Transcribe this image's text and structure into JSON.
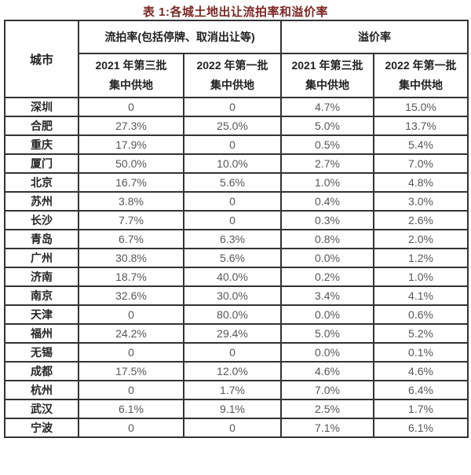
{
  "title": "表 1:各城土地出让流拍率和溢价率",
  "colors": {
    "title_text": "#7a2723",
    "border": "#333333",
    "header_text": "#1f1f1f",
    "value_text": "#575757",
    "background": "#ffffff"
  },
  "table": {
    "city_header": "城市",
    "group1": "流拍率(包括停牌、取消出让等)",
    "group2": "溢价率",
    "sub_headers": [
      {
        "line1": "2021 年第三批",
        "line2": "集中供地"
      },
      {
        "line1": "2022 年第一批",
        "line2": "集中供地"
      },
      {
        "line1": "2021 年第三批",
        "line2": "集中供地"
      },
      {
        "line1": "2022 年第一批",
        "line2": "集中供地"
      }
    ],
    "rows": [
      {
        "city": "深圳",
        "values": [
          "0",
          "0",
          "4.7%",
          "15.0%"
        ]
      },
      {
        "city": "合肥",
        "values": [
          "27.3%",
          "25.0%",
          "5.0%",
          "13.7%"
        ]
      },
      {
        "city": "重庆",
        "values": [
          "17.9%",
          "0",
          "0.5%",
          "5.4%"
        ]
      },
      {
        "city": "厦门",
        "values": [
          "50.0%",
          "10.0%",
          "2.7%",
          "7.0%"
        ]
      },
      {
        "city": "北京",
        "values": [
          "16.7%",
          "5.6%",
          "1.0%",
          "4.8%"
        ]
      },
      {
        "city": "苏州",
        "values": [
          "3.8%",
          "0",
          "0.4%",
          "3.0%"
        ]
      },
      {
        "city": "长沙",
        "values": [
          "7.7%",
          "0",
          "0.3%",
          "2.6%"
        ]
      },
      {
        "city": "青岛",
        "values": [
          "6.7%",
          "6.3%",
          "0.8%",
          "2.0%"
        ]
      },
      {
        "city": "广州",
        "values": [
          "30.8%",
          "5.6%",
          "0.0%",
          "1.2%"
        ]
      },
      {
        "city": "济南",
        "values": [
          "18.7%",
          "40.0%",
          "0.2%",
          "1.0%"
        ]
      },
      {
        "city": "南京",
        "values": [
          "32.6%",
          "30.0%",
          "3.4%",
          "4.1%"
        ]
      },
      {
        "city": "天津",
        "values": [
          "0",
          "80.0%",
          "0.0%",
          "0.6%"
        ]
      },
      {
        "city": "福州",
        "values": [
          "24.2%",
          "29.4%",
          "5.0%",
          "5.2%"
        ]
      },
      {
        "city": "无锡",
        "values": [
          "0",
          "0",
          "0.0%",
          "0.1%"
        ]
      },
      {
        "city": "成都",
        "values": [
          "17.5%",
          "12.0%",
          "4.6%",
          "4.6%"
        ]
      },
      {
        "city": "杭州",
        "values": [
          "0",
          "1.7%",
          "7.0%",
          "6.4%"
        ]
      },
      {
        "city": "武汉",
        "values": [
          "6.1%",
          "9.1%",
          "2.5%",
          "1.7%"
        ]
      },
      {
        "city": "宁波",
        "values": [
          "0",
          "0",
          "7.1%",
          "6.1%"
        ]
      }
    ]
  },
  "chart_data": {
    "type": "table",
    "title": "表 1:各城土地出让流拍率和溢价率",
    "column_groups": [
      "流拍率(包括停牌、取消出让等)",
      "溢价率"
    ],
    "columns": [
      "城市",
      "流拍率 2021 年第三批集中供地",
      "流拍率 2022 年第一批集中供地",
      "溢价率 2021 年第三批集中供地",
      "溢价率 2022 年第一批集中供地"
    ],
    "rows": [
      [
        "深圳",
        "0",
        "0",
        "4.7%",
        "15.0%"
      ],
      [
        "合肥",
        "27.3%",
        "25.0%",
        "5.0%",
        "13.7%"
      ],
      [
        "重庆",
        "17.9%",
        "0",
        "0.5%",
        "5.4%"
      ],
      [
        "厦门",
        "50.0%",
        "10.0%",
        "2.7%",
        "7.0%"
      ],
      [
        "北京",
        "16.7%",
        "5.6%",
        "1.0%",
        "4.8%"
      ],
      [
        "苏州",
        "3.8%",
        "0",
        "0.4%",
        "3.0%"
      ],
      [
        "长沙",
        "7.7%",
        "0",
        "0.3%",
        "2.6%"
      ],
      [
        "青岛",
        "6.7%",
        "6.3%",
        "0.8%",
        "2.0%"
      ],
      [
        "广州",
        "30.8%",
        "5.6%",
        "0.0%",
        "1.2%"
      ],
      [
        "济南",
        "18.7%",
        "40.0%",
        "0.2%",
        "1.0%"
      ],
      [
        "南京",
        "32.6%",
        "30.0%",
        "3.4%",
        "4.1%"
      ],
      [
        "天津",
        "0",
        "80.0%",
        "0.0%",
        "0.6%"
      ],
      [
        "福州",
        "24.2%",
        "29.4%",
        "5.0%",
        "5.2%"
      ],
      [
        "无锡",
        "0",
        "0",
        "0.0%",
        "0.1%"
      ],
      [
        "成都",
        "17.5%",
        "12.0%",
        "4.6%",
        "4.6%"
      ],
      [
        "杭州",
        "0",
        "1.7%",
        "7.0%",
        "6.4%"
      ],
      [
        "武汉",
        "6.1%",
        "9.1%",
        "2.5%",
        "1.7%"
      ],
      [
        "宁波",
        "0",
        "0",
        "7.1%",
        "6.1%"
      ]
    ]
  }
}
